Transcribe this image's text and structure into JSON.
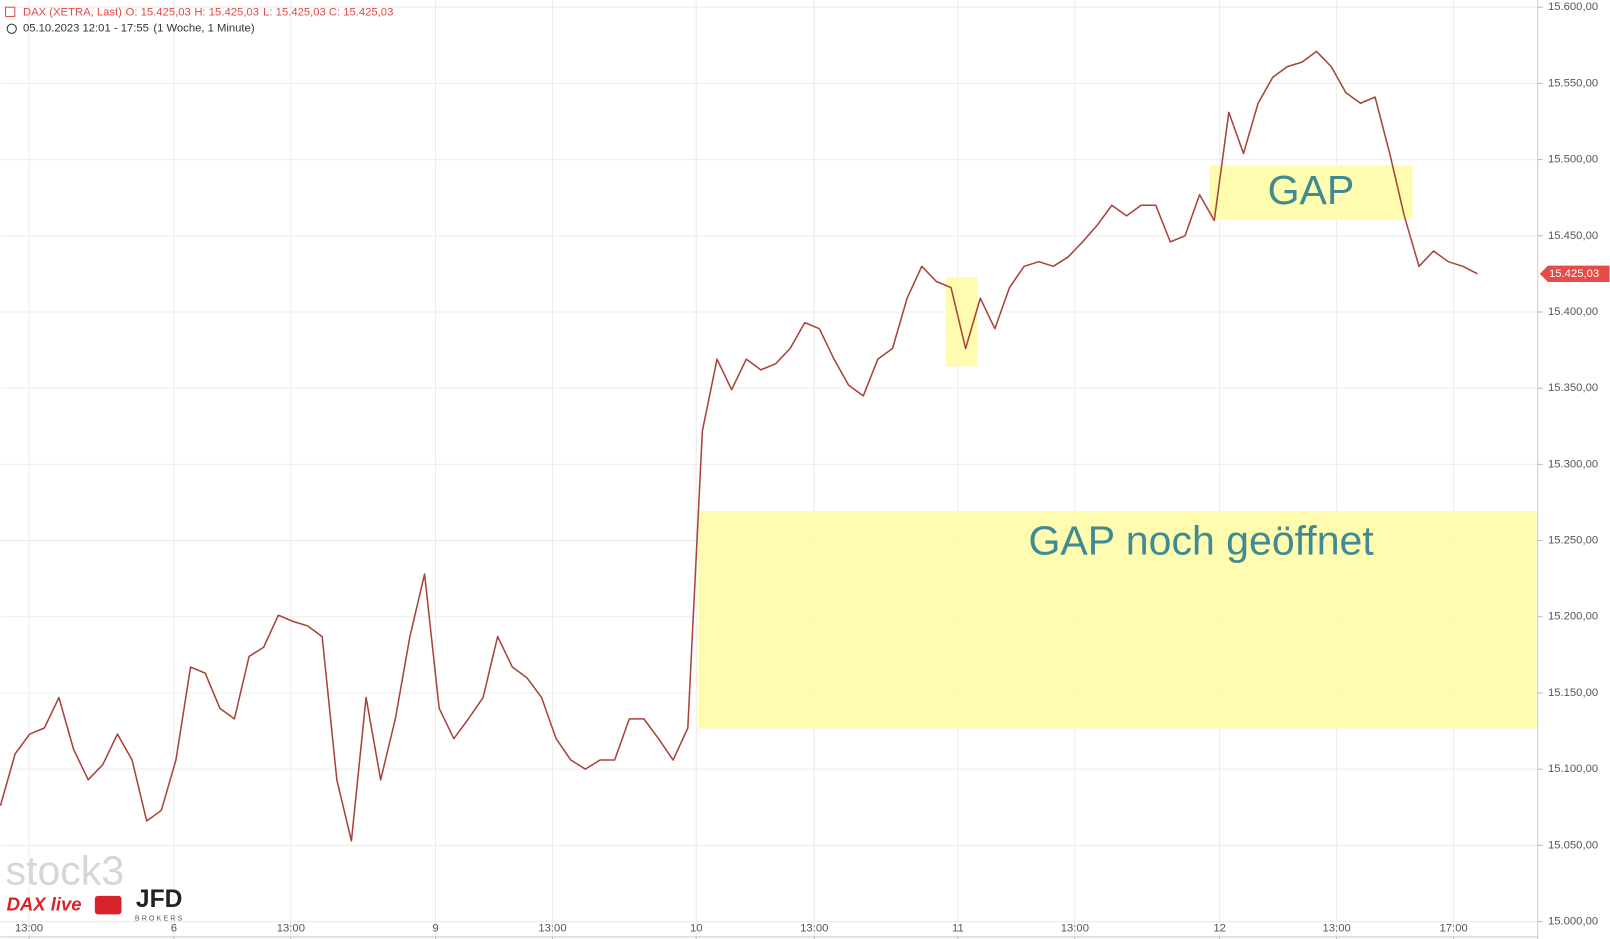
{
  "chart_data": {
    "type": "line",
    "title": "DAX (XETRA, Last)",
    "ohlc": [
      "O: 15.425,03",
      "H: 15.425,03",
      "L: 15.425,03",
      "C: 15.425,03"
    ],
    "subtitle": "05.10.2023 12:01 - 17:55",
    "period": "(1 Woche, 1 Minute)",
    "annotations": [
      "GAP",
      "GAP noch geöffnet"
    ],
    "logos": [
      "stock3",
      "DAX live",
      "JFD",
      "BROKERS"
    ],
    "last_label": "15.425,03",
    "series": [
      {
        "name": "DAX",
        "color": "#a8433a",
        "values": [
          15076,
          15110,
          15123,
          15127,
          15147,
          15113,
          15093,
          15103,
          15123,
          15106,
          15066,
          15073,
          15106,
          15167,
          15163,
          15140,
          15133,
          15174,
          15180,
          15201,
          15197,
          15194,
          15187,
          15093,
          15053,
          15147,
          15093,
          15133,
          15187,
          15228,
          15140,
          15120,
          15133,
          15147,
          15187,
          15167,
          15160,
          15147,
          15120,
          15106,
          15100,
          15106,
          15106,
          15133,
          15133,
          15120,
          15106,
          15127,
          15322,
          15369,
          15349,
          15369,
          15362,
          15366,
          15376,
          15393,
          15389,
          15369,
          15352,
          15345,
          15369,
          15376,
          15409,
          15430,
          15420,
          15416,
          15376,
          15409,
          15389,
          15416,
          15430,
          15433,
          15430,
          15436,
          15446,
          15457,
          15470,
          15463,
          15470,
          15470,
          15446,
          15450,
          15477,
          15460,
          15531,
          15504,
          15537,
          15554,
          15561,
          15564,
          15571,
          15561,
          15544,
          15537,
          15541,
          15504,
          15463,
          15430,
          15440,
          15433,
          15430,
          15425.03
        ]
      }
    ],
    "xlim": [
      0,
      105.12
    ],
    "xticks": [
      {
        "value": 1.96,
        "label": "13:00"
      },
      {
        "value": 11.86,
        "label": "6"
      },
      {
        "value": 19.86,
        "label": "13:00"
      },
      {
        "value": 29.75,
        "label": "9"
      },
      {
        "value": 37.75,
        "label": "13:00"
      },
      {
        "value": 47.58,
        "label": "10"
      },
      {
        "value": 55.65,
        "label": "13:00"
      },
      {
        "value": 65.47,
        "label": "11"
      },
      {
        "value": 73.47,
        "label": "13:00"
      },
      {
        "value": 83.37,
        "label": "12"
      },
      {
        "value": 91.37,
        "label": "13:00"
      },
      {
        "value": 99.37,
        "label": "17:00"
      }
    ],
    "ylim": [
      15000,
      15600
    ],
    "yticks": [
      {
        "value": 15000,
        "label": "15.000,00"
      },
      {
        "value": 15050,
        "label": "15.050,00"
      },
      {
        "value": 15100,
        "label": "15.100,00"
      },
      {
        "value": 15150,
        "label": "15.150,00"
      },
      {
        "value": 15200,
        "label": "15.200,00"
      },
      {
        "value": 15250,
        "label": "15.250,00"
      },
      {
        "value": 15300,
        "label": "15.300,00"
      },
      {
        "value": 15350,
        "label": "15.350,00"
      },
      {
        "value": 15400,
        "label": "15.400,00"
      },
      {
        "value": 15450,
        "label": "15.450,00"
      },
      {
        "value": 15500,
        "label": "15.500,00"
      },
      {
        "value": 15550,
        "label": "15.550,00"
      },
      {
        "value": 15600,
        "label": "15.600,00"
      }
    ],
    "grid": true
  }
}
